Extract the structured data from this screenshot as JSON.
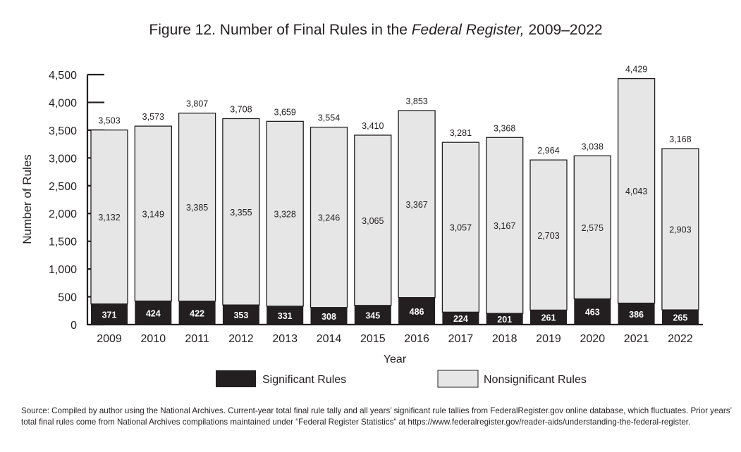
{
  "chart_data": {
    "type": "bar",
    "stacked": true,
    "title": {
      "prefix": "Figure 12. Number of Final Rules in the ",
      "italic": "Federal Register,",
      "suffix": " 2009–2022"
    },
    "xlabel": "Year",
    "ylabel": "Number of Rules",
    "ylim": [
      0,
      4500
    ],
    "yticks": [
      0,
      500,
      1000,
      1500,
      2000,
      2500,
      3000,
      3500,
      4000,
      4500
    ],
    "ytick_labels": [
      "0",
      "500",
      "1,000",
      "1,500",
      "2,000",
      "2,500",
      "3,000",
      "3,500",
      "4,000",
      "4,500"
    ],
    "grid": false,
    "legend_position": "bottom",
    "categories": [
      "2009",
      "2010",
      "2011",
      "2012",
      "2013",
      "2014",
      "2015",
      "2016",
      "2017",
      "2018",
      "2019",
      "2020",
      "2021",
      "2022"
    ],
    "series": [
      {
        "name": "Significant Rules",
        "color": "#231f20",
        "values": [
          371,
          424,
          422,
          353,
          331,
          308,
          345,
          486,
          224,
          201,
          261,
          463,
          386,
          265
        ],
        "labels": [
          "371",
          "424",
          "422",
          "353",
          "331",
          "308",
          "345",
          "486",
          "224",
          "201",
          "261",
          "463",
          "386",
          "265"
        ]
      },
      {
        "name": "Nonsignificant Rules",
        "color": "#e6e6e7",
        "values": [
          3132,
          3149,
          3385,
          3355,
          3328,
          3246,
          3065,
          3367,
          3057,
          3167,
          2703,
          2575,
          4043,
          2903
        ],
        "labels": [
          "3,132",
          "3,149",
          "3,385",
          "3,355",
          "3,328",
          "3,246",
          "3,065",
          "3,367",
          "3,057",
          "3,167",
          "2,703",
          "2,575",
          "4,043",
          "2,903"
        ]
      }
    ],
    "totals": [
      3503,
      3573,
      3807,
      3708,
      3659,
      3554,
      3410,
      3853,
      3281,
      3368,
      2964,
      3038,
      4429,
      3168
    ],
    "total_labels": [
      "3,503",
      "3,573",
      "3,807",
      "3,708",
      "3,659",
      "3,554",
      "3,410",
      "3,853",
      "3,281",
      "3,368",
      "2,964",
      "3,038",
      "4,429",
      "3,168"
    ]
  },
  "source_note": "Source: Compiled by author using the National Archives. Current-year total final rule tally and all years’ significant rule tallies from FederalRegister.gov online database, which fluctuates.  Prior years’ total final rules come from National Archives compilations maintained under “Federal Register Statistics” at https://www.federalregister.gov/reader-aids/understanding-the-federal-register."
}
